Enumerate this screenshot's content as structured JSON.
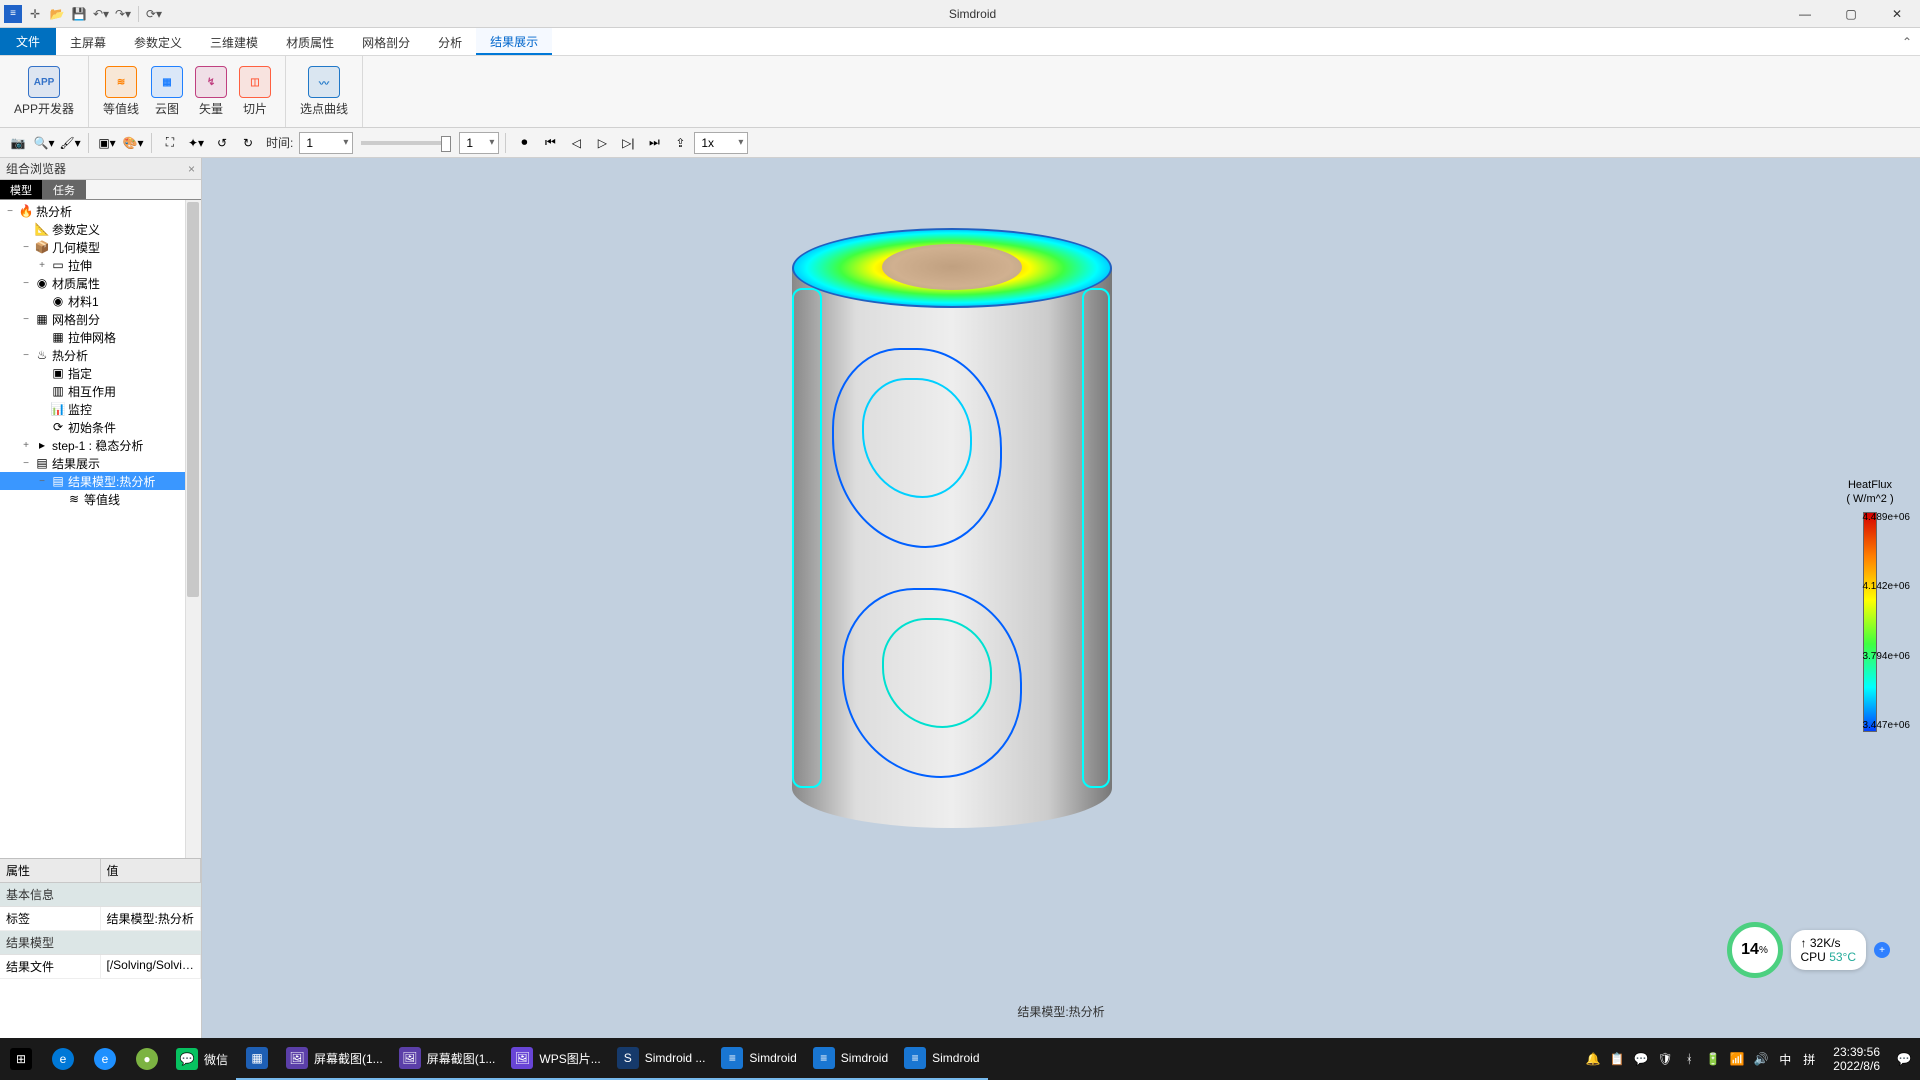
{
  "titlebar": {
    "app_title": "Simdroid"
  },
  "menu": {
    "file": "文件",
    "items": [
      "主屏幕",
      "参数定义",
      "三维建模",
      "材质属性",
      "网格剖分",
      "分析",
      "结果展示"
    ],
    "active_index": 6
  },
  "ribbon": {
    "groups": [
      {
        "buttons": [
          {
            "label": "APP开发器",
            "icon": "APP",
            "tint": "#3472c8"
          }
        ]
      },
      {
        "buttons": [
          {
            "label": "等值线",
            "icon": "contour",
            "tint": "#ff8000"
          },
          {
            "label": "云图",
            "icon": "cloud",
            "tint": "#2080ff"
          },
          {
            "label": "矢量",
            "icon": "vector",
            "tint": "#c04080"
          },
          {
            "label": "切片",
            "icon": "slice",
            "tint": "#ff6040"
          }
        ]
      },
      {
        "buttons": [
          {
            "label": "选点曲线",
            "icon": "curve",
            "tint": "#2078c8"
          }
        ]
      }
    ]
  },
  "toolbar": {
    "time_label": "时间:",
    "time_value": "1",
    "step_value": "1",
    "speed_value": "1x"
  },
  "browser": {
    "panel_title": "组合浏览器",
    "tabs": [
      "模型",
      "任务"
    ],
    "active_tab": 0,
    "tree": [
      {
        "d": 0,
        "exp": "−",
        "icon": "🔥",
        "label": "热分析",
        "tint": "#ff8000"
      },
      {
        "d": 1,
        "exp": "",
        "icon": "📐",
        "label": "参数定义"
      },
      {
        "d": 1,
        "exp": "−",
        "icon": "📦",
        "label": "几何模型"
      },
      {
        "d": 2,
        "exp": "+",
        "icon": "▭",
        "label": "拉伸"
      },
      {
        "d": 1,
        "exp": "−",
        "icon": "◉",
        "label": "材质属性"
      },
      {
        "d": 2,
        "exp": "",
        "icon": "◉",
        "label": "材料1"
      },
      {
        "d": 1,
        "exp": "−",
        "icon": "▦",
        "label": "网格剖分"
      },
      {
        "d": 2,
        "exp": "",
        "icon": "▦",
        "label": "拉伸网格"
      },
      {
        "d": 1,
        "exp": "−",
        "icon": "♨",
        "label": "热分析"
      },
      {
        "d": 2,
        "exp": "",
        "icon": "▣",
        "label": "指定"
      },
      {
        "d": 2,
        "exp": "",
        "icon": "▥",
        "label": "相互作用"
      },
      {
        "d": 2,
        "exp": "",
        "icon": "📊",
        "label": "监控"
      },
      {
        "d": 2,
        "exp": "",
        "icon": "⟳",
        "label": "初始条件"
      },
      {
        "d": 1,
        "exp": "+",
        "icon": "▸",
        "label": "step-1 : 稳态分析"
      },
      {
        "d": 1,
        "exp": "−",
        "icon": "▤",
        "label": "结果展示"
      },
      {
        "d": 2,
        "exp": "−",
        "icon": "▤",
        "label": "结果模型:热分析",
        "selected": true
      },
      {
        "d": 3,
        "exp": "",
        "icon": "≋",
        "label": "等值线"
      }
    ]
  },
  "properties": {
    "col_attr": "属性",
    "col_val": "值",
    "cat_basic": "基本信息",
    "row_label_k": "标签",
    "row_label_v": "结果模型:热分析",
    "cat_model": "结果模型",
    "row_file_k": "结果文件",
    "row_file_v": "[/Solving/Solvin..."
  },
  "viewport": {
    "caption": "结果模型:热分析",
    "legend_title_1": "HeatFlux",
    "legend_title_2": "( W/m^2 )",
    "legend_ticks": [
      "4.489e+06",
      "4.142e+06",
      "3.794e+06",
      "3.447e+06"
    ],
    "contour_colors": [
      "#0040ff",
      "#00c0ff",
      "#00ffc0",
      "#0060ff"
    ]
  },
  "perf": {
    "percent": "14",
    "percent_suffix": "%",
    "net": "32K/s",
    "cpu_label": "CPU ",
    "cpu_temp": "53°C"
  },
  "taskbar": {
    "apps": [
      {
        "label": "",
        "icon": "⊞",
        "bg": "#000"
      },
      {
        "label": "",
        "icon": "e",
        "bg": "#0078d7",
        "round": true
      },
      {
        "label": "",
        "icon": "e",
        "bg": "#1e90ff",
        "round": true
      },
      {
        "label": "",
        "icon": "●",
        "bg": "#7cb342",
        "round": true
      },
      {
        "label": "微信",
        "icon": "💬",
        "bg": "#07c160"
      },
      {
        "label": "",
        "icon": "▦",
        "bg": "#1e5fb4"
      },
      {
        "label": "屏幕截图(1...",
        "icon": "🖼",
        "bg": "#5b3fa8"
      },
      {
        "label": "屏幕截图(1...",
        "icon": "🖼",
        "bg": "#5b3fa8"
      },
      {
        "label": "WPS图片...",
        "icon": "🖼",
        "bg": "#6845d6"
      },
      {
        "label": "Simdroid ...",
        "icon": "S",
        "bg": "#163a6b"
      },
      {
        "label": "Simdroid",
        "icon": "≡",
        "bg": "#1976d2"
      },
      {
        "label": "Simdroid",
        "icon": "≡",
        "bg": "#1976d2"
      },
      {
        "label": "Simdroid",
        "icon": "≡",
        "bg": "#1976d2"
      }
    ],
    "tray_icons": [
      "🔔",
      "📋",
      "💬",
      "🛡",
      "ᚼ",
      "🔋",
      "📶",
      "🔊"
    ],
    "ime_1": "中",
    "ime_2": "拼",
    "time": "23:39:56",
    "date": "2022/8/6"
  }
}
